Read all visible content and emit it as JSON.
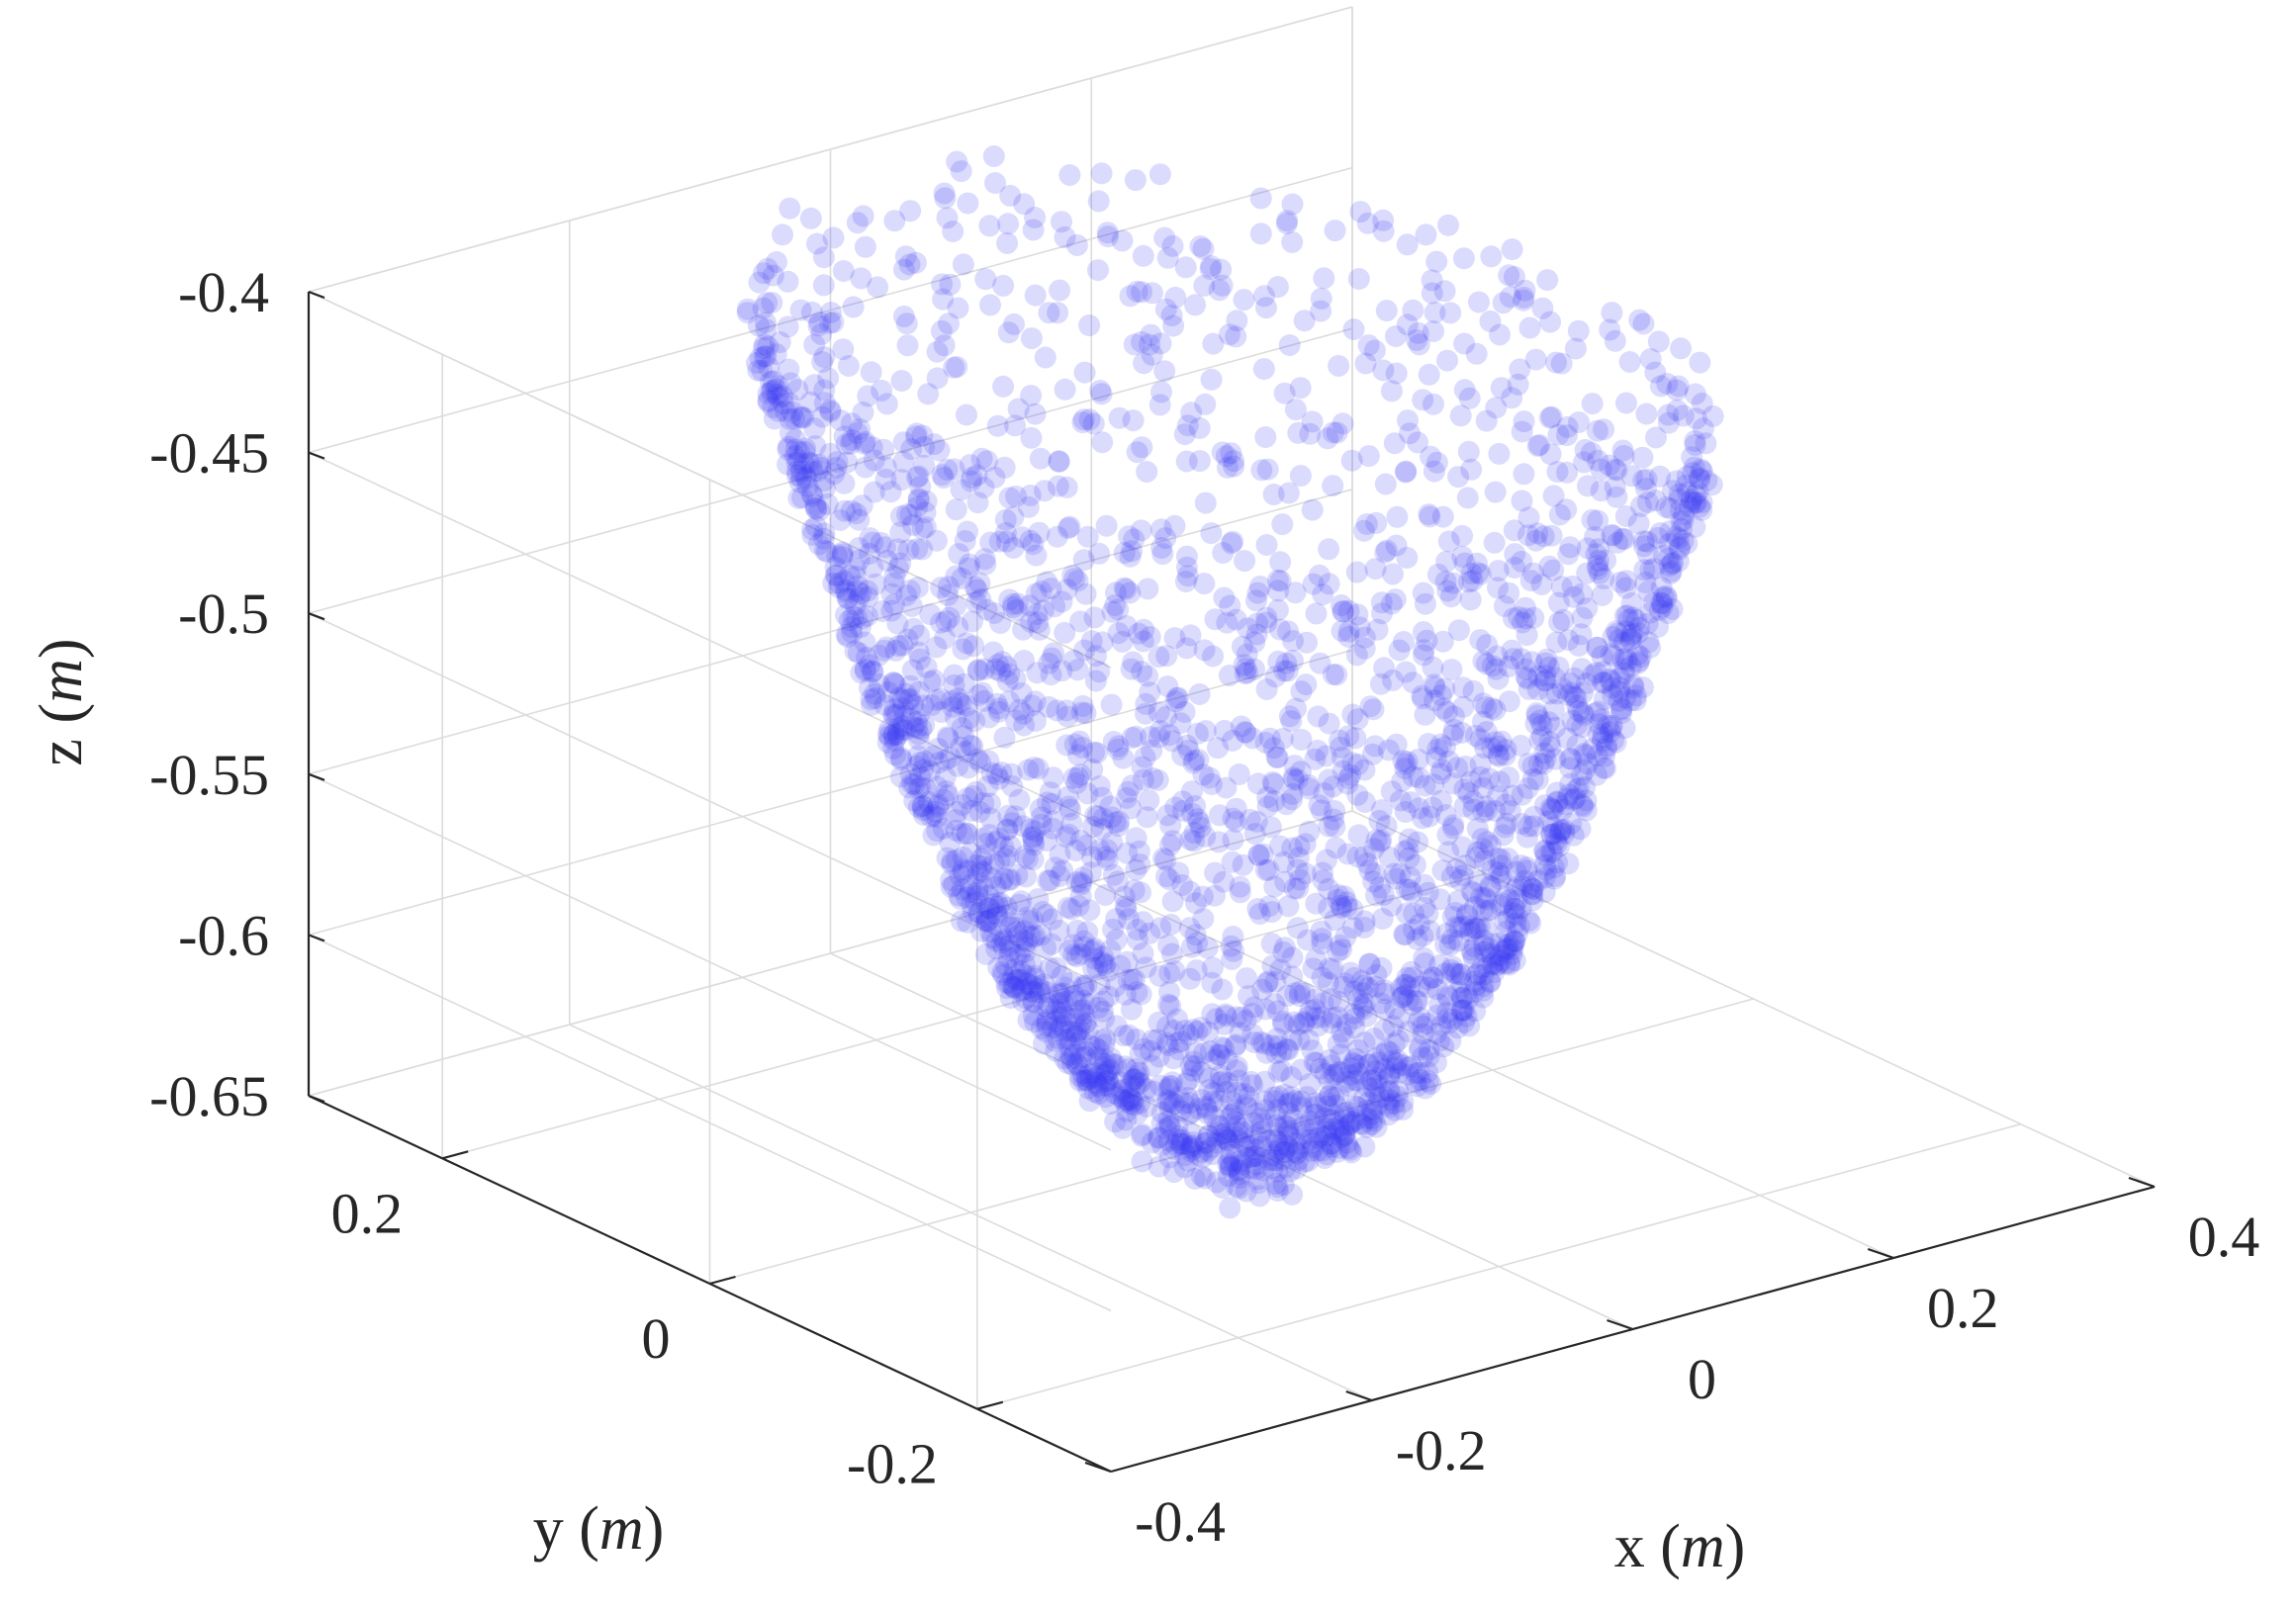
{
  "chart_data": {
    "type": "scatter",
    "title": "",
    "xlabel": {
      "name": "x",
      "unit": "m"
    },
    "ylabel": {
      "name": "y",
      "unit": "m"
    },
    "zlabel": {
      "name": "z",
      "unit": "m"
    },
    "xlim": [
      -0.4,
      0.4
    ],
    "ylim": [
      -0.3,
      0.3
    ],
    "zlim": [
      -0.65,
      -0.4
    ],
    "x_ticks": [
      -0.4,
      -0.2,
      0,
      0.2,
      0.4
    ],
    "x_tick_labels": [
      "-0.4",
      "-0.2",
      "0",
      "0.2",
      "0.4"
    ],
    "y_ticks": [
      -0.2,
      0,
      0.2
    ],
    "y_tick_labels": [
      "-0.2",
      "0",
      "0.2"
    ],
    "z_ticks": [
      -0.65,
      -0.6,
      -0.55,
      -0.5,
      -0.45,
      -0.4
    ],
    "z_tick_labels": [
      "-0.65",
      "-0.6",
      "-0.55",
      "-0.5",
      "-0.45",
      "-0.4"
    ],
    "grid": true,
    "legend": "none",
    "marker_color": "#3a3af2",
    "marker_alpha": 0.18,
    "point_cloud": {
      "shape": "bowl-shaped cloud approximately 3000 points",
      "approx_point_count": 3000,
      "x_range": [
        -0.25,
        0.25
      ],
      "y_range": [
        -0.27,
        0.27
      ],
      "z_range": [
        -0.655,
        -0.4
      ],
      "sample_points": [
        [
          0.0,
          0.0,
          -0.655
        ],
        [
          0.05,
          -0.05,
          -0.645
        ],
        [
          -0.08,
          0.06,
          -0.62
        ],
        [
          0.12,
          0.1,
          -0.6
        ],
        [
          -0.15,
          -0.12,
          -0.58
        ],
        [
          0.2,
          -0.05,
          -0.55
        ],
        [
          -0.2,
          0.15,
          -0.52
        ],
        [
          0.1,
          0.22,
          -0.5
        ],
        [
          -0.05,
          -0.24,
          -0.48
        ],
        [
          0.22,
          0.08,
          -0.47
        ],
        [
          -0.18,
          -0.2,
          -0.45
        ],
        [
          0.0,
          0.25,
          -0.43
        ]
      ]
    }
  }
}
